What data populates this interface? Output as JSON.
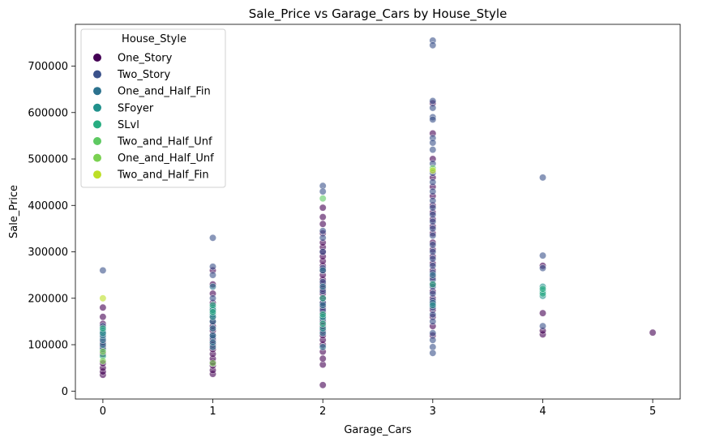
{
  "chart_data": {
    "type": "scatter",
    "title": "Sale_Price vs Garage_Cars by House_Style",
    "xlabel": "Garage_Cars",
    "ylabel": "Sale_Price",
    "xlim": [
      -0.25,
      5.25
    ],
    "ylim": [
      -17000,
      790000
    ],
    "xticks": [
      0,
      1,
      2,
      3,
      4,
      5
    ],
    "yticks": [
      0,
      100000,
      200000,
      300000,
      400000,
      500000,
      600000,
      700000
    ],
    "legend": {
      "title": "House_Style",
      "placement": "top-left"
    },
    "grid": false,
    "series": [
      {
        "name": "One_Story",
        "color": "#440154",
        "points": [
          [
            0,
            35000
          ],
          [
            0,
            42000
          ],
          [
            0,
            50000
          ],
          [
            0,
            60000
          ],
          [
            0,
            80000
          ],
          [
            0,
            95000
          ],
          [
            0,
            105000
          ],
          [
            0,
            125000
          ],
          [
            0,
            145000
          ],
          [
            0,
            160000
          ],
          [
            0,
            180000
          ],
          [
            1,
            37000
          ],
          [
            1,
            45000
          ],
          [
            1,
            55000
          ],
          [
            1,
            62000
          ],
          [
            1,
            70000
          ],
          [
            1,
            80000
          ],
          [
            1,
            90000
          ],
          [
            1,
            100000
          ],
          [
            1,
            110000
          ],
          [
            1,
            120000
          ],
          [
            1,
            130000
          ],
          [
            1,
            140000
          ],
          [
            1,
            150000
          ],
          [
            1,
            160000
          ],
          [
            1,
            175000
          ],
          [
            1,
            190000
          ],
          [
            1,
            210000
          ],
          [
            1,
            230000
          ],
          [
            1,
            260000
          ],
          [
            2,
            13000
          ],
          [
            2,
            57000
          ],
          [
            2,
            70000
          ],
          [
            2,
            85000
          ],
          [
            2,
            100000
          ],
          [
            2,
            110000
          ],
          [
            2,
            120000
          ],
          [
            2,
            130000
          ],
          [
            2,
            140000
          ],
          [
            2,
            150000
          ],
          [
            2,
            160000
          ],
          [
            2,
            170000
          ],
          [
            2,
            180000
          ],
          [
            2,
            190000
          ],
          [
            2,
            200000
          ],
          [
            2,
            210000
          ],
          [
            2,
            220000
          ],
          [
            2,
            230000
          ],
          [
            2,
            240000
          ],
          [
            2,
            250000
          ],
          [
            2,
            260000
          ],
          [
            2,
            270000
          ],
          [
            2,
            280000
          ],
          [
            2,
            290000
          ],
          [
            2,
            300000
          ],
          [
            2,
            310000
          ],
          [
            2,
            320000
          ],
          [
            2,
            340000
          ],
          [
            2,
            360000
          ],
          [
            2,
            375000
          ],
          [
            2,
            395000
          ],
          [
            3,
            120000
          ],
          [
            3,
            140000
          ],
          [
            3,
            160000
          ],
          [
            3,
            175000
          ],
          [
            3,
            190000
          ],
          [
            3,
            200000
          ],
          [
            3,
            215000
          ],
          [
            3,
            230000
          ],
          [
            3,
            245000
          ],
          [
            3,
            260000
          ],
          [
            3,
            275000
          ],
          [
            3,
            290000
          ],
          [
            3,
            305000
          ],
          [
            3,
            320000
          ],
          [
            3,
            340000
          ],
          [
            3,
            355000
          ],
          [
            3,
            370000
          ],
          [
            3,
            385000
          ],
          [
            3,
            400000
          ],
          [
            3,
            420000
          ],
          [
            3,
            440000
          ],
          [
            3,
            460000
          ],
          [
            3,
            500000
          ],
          [
            3,
            555000
          ],
          [
            3,
            620000
          ],
          [
            4,
            122000
          ],
          [
            4,
            130000
          ],
          [
            4,
            168000
          ],
          [
            4,
            270000
          ],
          [
            5,
            126000
          ]
        ]
      },
      {
        "name": "Two_Story",
        "color": "#3b528b",
        "points": [
          [
            0,
            260000
          ],
          [
            0,
            115000
          ],
          [
            0,
            140000
          ],
          [
            1,
            330000
          ],
          [
            1,
            268000
          ],
          [
            1,
            250000
          ],
          [
            1,
            200000
          ],
          [
            1,
            115000
          ],
          [
            2,
            442000
          ],
          [
            2,
            430000
          ],
          [
            2,
            345000
          ],
          [
            2,
            330000
          ],
          [
            2,
            300000
          ],
          [
            2,
            265000
          ],
          [
            2,
            235000
          ],
          [
            2,
            215000
          ],
          [
            2,
            190000
          ],
          [
            2,
            175000
          ],
          [
            3,
            755000
          ],
          [
            3,
            745000
          ],
          [
            3,
            625000
          ],
          [
            3,
            610000
          ],
          [
            3,
            590000
          ],
          [
            3,
            585000
          ],
          [
            3,
            545000
          ],
          [
            3,
            535000
          ],
          [
            3,
            520000
          ],
          [
            3,
            490000
          ],
          [
            3,
            470000
          ],
          [
            3,
            450000
          ],
          [
            3,
            430000
          ],
          [
            3,
            410000
          ],
          [
            3,
            395000
          ],
          [
            3,
            380000
          ],
          [
            3,
            365000
          ],
          [
            3,
            350000
          ],
          [
            3,
            335000
          ],
          [
            3,
            315000
          ],
          [
            3,
            300000
          ],
          [
            3,
            285000
          ],
          [
            3,
            270000
          ],
          [
            3,
            255000
          ],
          [
            3,
            240000
          ],
          [
            3,
            225000
          ],
          [
            3,
            210000
          ],
          [
            3,
            195000
          ],
          [
            3,
            180000
          ],
          [
            3,
            165000
          ],
          [
            3,
            150000
          ],
          [
            3,
            125000
          ],
          [
            3,
            110000
          ],
          [
            3,
            95000
          ],
          [
            3,
            82000
          ],
          [
            4,
            460000
          ],
          [
            4,
            292000
          ],
          [
            4,
            265000
          ],
          [
            4,
            140000
          ]
        ]
      },
      {
        "name": "One_and_Half_Fin",
        "color": "#2c728e",
        "points": [
          [
            0,
            90000
          ],
          [
            0,
            100000
          ],
          [
            0,
            110000
          ],
          [
            0,
            120000
          ],
          [
            0,
            130000
          ],
          [
            1,
            95000
          ],
          [
            1,
            105000
          ],
          [
            1,
            120000
          ],
          [
            1,
            135000
          ],
          [
            1,
            150000
          ],
          [
            1,
            165000
          ],
          [
            1,
            180000
          ],
          [
            1,
            225000
          ],
          [
            2,
            95000
          ],
          [
            2,
            125000
          ],
          [
            2,
            155000
          ],
          [
            2,
            185000
          ],
          [
            2,
            225000
          ],
          [
            2,
            260000
          ],
          [
            3,
            190000
          ],
          [
            3,
            250000
          ]
        ]
      },
      {
        "name": "SFoyer",
        "color": "#21918c",
        "points": [
          [
            0,
            125000
          ],
          [
            1,
            160000
          ],
          [
            1,
            175000
          ],
          [
            2,
            135000
          ],
          [
            2,
            160000
          ],
          [
            3,
            185000
          ],
          [
            4,
            215000
          ],
          [
            4,
            225000
          ],
          [
            4,
            205000
          ]
        ]
      },
      {
        "name": "SLvl",
        "color": "#27ad81",
        "points": [
          [
            0,
            75000
          ],
          [
            0,
            135000
          ],
          [
            1,
            170000
          ],
          [
            1,
            185000
          ],
          [
            2,
            145000
          ],
          [
            2,
            165000
          ],
          [
            2,
            200000
          ],
          [
            3,
            230000
          ],
          [
            4,
            210000
          ],
          [
            4,
            220000
          ]
        ]
      },
      {
        "name": "Two_and_Half_Unf",
        "color": "#5ec962",
        "points": [
          [
            2,
            415000
          ],
          [
            3,
            480000
          ]
        ]
      },
      {
        "name": "One_and_Half_Unf",
        "color": "#7ad151",
        "points": [
          [
            0,
            85000
          ],
          [
            0,
            65000
          ],
          [
            1,
            60000
          ]
        ]
      },
      {
        "name": "Two_and_Half_Fin",
        "color": "#bddf26",
        "points": [
          [
            0,
            200000
          ],
          [
            3,
            475000
          ]
        ]
      }
    ]
  }
}
